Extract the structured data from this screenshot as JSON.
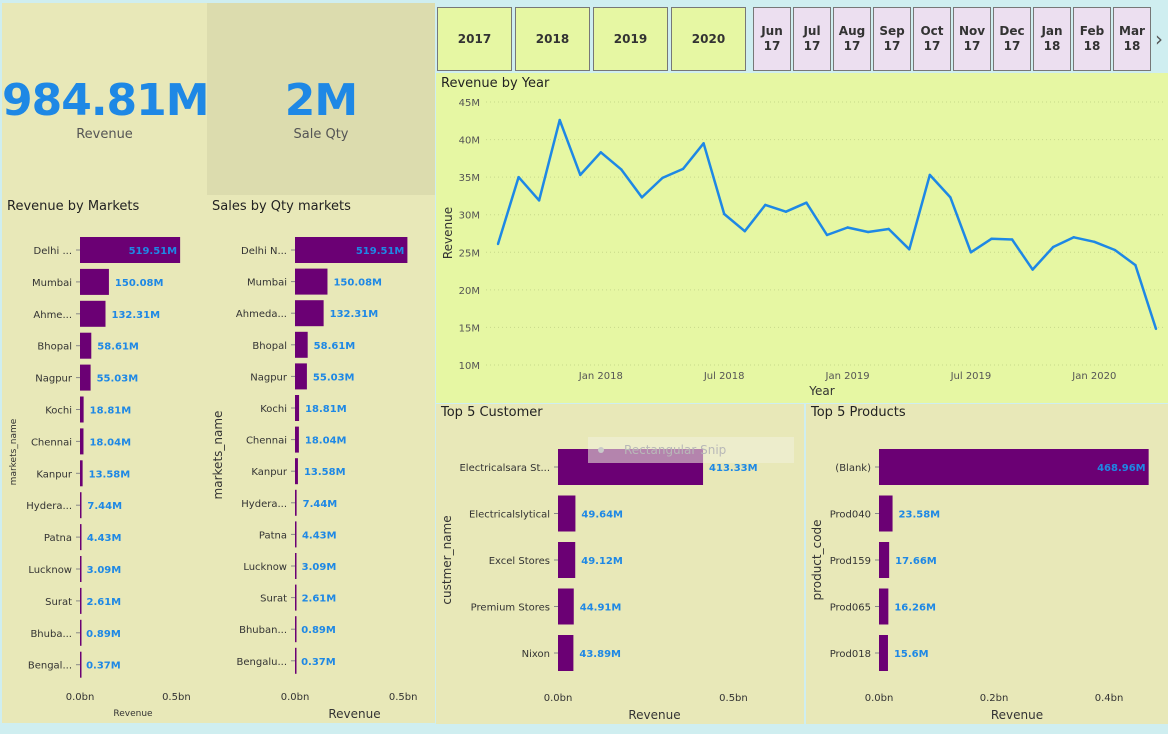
{
  "kpis": {
    "revenue": {
      "value": "984.81M",
      "label": "Revenue"
    },
    "sale_qty": {
      "value": "2M",
      "label": "Sale Qty"
    }
  },
  "slicers": {
    "years": [
      "2017",
      "2018",
      "2019",
      "2020"
    ],
    "months": [
      {
        "m": "Jun",
        "y": "17"
      },
      {
        "m": "Jul",
        "y": "17"
      },
      {
        "m": "Aug",
        "y": "17"
      },
      {
        "m": "Sep",
        "y": "17"
      },
      {
        "m": "Oct",
        "y": "17"
      },
      {
        "m": "Nov",
        "y": "17"
      },
      {
        "m": "Dec",
        "y": "17"
      },
      {
        "m": "Jan",
        "y": "18"
      },
      {
        "m": "Feb",
        "y": "18"
      },
      {
        "m": "Mar",
        "y": "18"
      }
    ],
    "next_icon": "chevron-right-icon"
  },
  "snip_overlay": {
    "label": "Rectangular Snip"
  },
  "colors": {
    "bar": "#6b0074",
    "label": "#1e88e5",
    "line": "#1e88e5"
  },
  "chart_data": [
    {
      "id": "revenue_by_markets",
      "type": "bar",
      "orientation": "horizontal",
      "title": "Revenue by Markets",
      "ylabel": "markets_name",
      "xlabel": "Revenue",
      "categories": [
        "Delhi ...",
        "Mumbai",
        "Ahme...",
        "Bhopal",
        "Nagpur",
        "Kochi",
        "Chennai",
        "Kanpur",
        "Hydera...",
        "Patna",
        "Lucknow",
        "Surat",
        "Bhuba...",
        "Bengal..."
      ],
      "values": [
        519.51,
        150.08,
        132.31,
        58.61,
        55.03,
        18.81,
        18.04,
        13.58,
        7.44,
        4.43,
        3.09,
        2.61,
        0.89,
        0.37
      ],
      "data_labels": [
        "519.51M",
        "150.08M",
        "132.31M",
        "58.61M",
        "55.03M",
        "18.81M",
        "18.04M",
        "13.58M",
        "7.44M",
        "4.43M",
        "3.09M",
        "2.61M",
        "0.89M",
        "0.37M"
      ],
      "xlim": [
        0,
        0.55
      ],
      "xticks": [
        "0.0bn",
        "0.5bn"
      ]
    },
    {
      "id": "sales_by_qty_markets",
      "type": "bar",
      "orientation": "horizontal",
      "title": "Sales by Qty markets",
      "ylabel": "markets_name",
      "xlabel": "Revenue",
      "categories": [
        "Delhi N...",
        "Mumbai",
        "Ahmeda...",
        "Bhopal",
        "Nagpur",
        "Kochi",
        "Chennai",
        "Kanpur",
        "Hydera...",
        "Patna",
        "Lucknow",
        "Surat",
        "Bhuban...",
        "Bengalu..."
      ],
      "values": [
        519.51,
        150.08,
        132.31,
        58.61,
        55.03,
        18.81,
        18.04,
        13.58,
        7.44,
        4.43,
        3.09,
        2.61,
        0.89,
        0.37
      ],
      "data_labels": [
        "519.51M",
        "150.08M",
        "132.31M",
        "58.61M",
        "55.03M",
        "18.81M",
        "18.04M",
        "13.58M",
        "7.44M",
        "4.43M",
        "3.09M",
        "2.61M",
        "0.89M",
        "0.37M"
      ],
      "xlim": [
        0,
        0.55
      ],
      "xticks": [
        "0.0bn",
        "0.5bn"
      ]
    },
    {
      "id": "revenue_by_year",
      "type": "line",
      "title": "Revenue by Year",
      "xlabel": "Year",
      "ylabel": "Revenue",
      "ylim": [
        10,
        45
      ],
      "yticks": [
        "10M",
        "15M",
        "20M",
        "25M",
        "30M",
        "35M",
        "40M",
        "45M"
      ],
      "xticks": [
        {
          "label": "Jan 2018",
          "index": 5
        },
        {
          "label": "Jul 2018",
          "index": 11
        },
        {
          "label": "Jan 2019",
          "index": 17
        },
        {
          "label": "Jul 2019",
          "index": 23
        },
        {
          "label": "Jan 2020",
          "index": 29
        }
      ],
      "values": [
        26.1,
        35.0,
        31.9,
        42.6,
        35.3,
        38.3,
        36.0,
        32.3,
        34.9,
        36.1,
        39.5,
        30.1,
        27.8,
        31.3,
        30.4,
        31.6,
        27.3,
        28.3,
        27.7,
        28.1,
        25.4,
        35.3,
        32.3,
        25.0,
        26.8,
        26.7,
        22.7,
        25.7,
        27.0,
        26.4,
        25.3,
        23.3,
        14.8
      ]
    },
    {
      "id": "top5_customer",
      "type": "bar",
      "orientation": "horizontal",
      "title": "Top 5 Customer",
      "ylabel": "custmer_name",
      "xlabel": "Revenue",
      "categories": [
        "Electricalsara St...",
        "Electricalslytical",
        "Excel Stores",
        "Premium Stores",
        "Nixon"
      ],
      "values": [
        413.33,
        49.64,
        49.12,
        44.91,
        43.89
      ],
      "data_labels": [
        "413.33M",
        "49.64M",
        "49.12M",
        "44.91M",
        "43.89M"
      ],
      "xlim": [
        0,
        0.55
      ],
      "xticks": [
        "0.0bn",
        "0.5bn"
      ]
    },
    {
      "id": "top5_products",
      "type": "bar",
      "orientation": "horizontal",
      "title": "Top 5 Products",
      "ylabel": "product_code",
      "xlabel": "Revenue",
      "categories": [
        "(Blank)",
        "Prod040",
        "Prod159",
        "Prod065",
        "Prod018"
      ],
      "values": [
        468.96,
        23.58,
        17.66,
        16.26,
        15.6
      ],
      "data_labels": [
        "468.96M",
        "23.58M",
        "17.66M",
        "16.26M",
        "15.6M"
      ],
      "xlim": [
        0,
        0.48
      ],
      "xticks": [
        "0.0bn",
        "0.2bn",
        "0.4bn"
      ]
    }
  ]
}
